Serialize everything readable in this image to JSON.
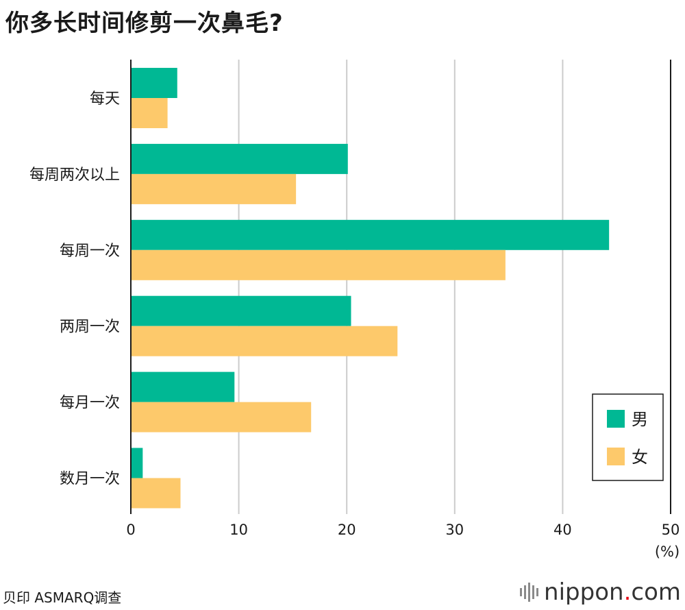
{
  "title": "你多长时间修剪一次鼻毛?",
  "source": "贝印 ASMARQ调查",
  "logo": {
    "text": "nippon",
    "dot": ".",
    "suffix": "com"
  },
  "chart_data": {
    "type": "bar",
    "orientation": "horizontal",
    "title": "你多长时间修剪一次鼻毛?",
    "categories": [
      "每天",
      "每周两次以上",
      "每周一次",
      "两周一次",
      "每月一次",
      "数月一次"
    ],
    "series": [
      {
        "name": "男",
        "color": "#00b894",
        "values": [
          4.3,
          20.1,
          44.3,
          20.4,
          9.6,
          1.1
        ]
      },
      {
        "name": "女",
        "color": "#fdc96b",
        "values": [
          3.4,
          15.3,
          34.7,
          24.7,
          16.7,
          4.6
        ]
      }
    ],
    "xlim": [
      0,
      50
    ],
    "xticks": [
      0,
      10,
      20,
      30,
      40,
      50
    ],
    "xunit": "(%)",
    "grid": true,
    "legend": "bottom-right"
  }
}
